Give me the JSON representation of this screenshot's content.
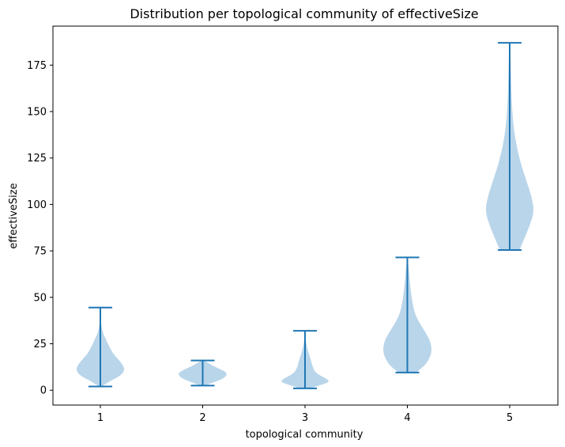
{
  "chart_data": {
    "type": "violin",
    "title": "Distribution per topological community of effectiveSize",
    "xlabel": "topological community",
    "ylabel": "effectiveSize",
    "ylim": [
      -8,
      196
    ],
    "y_ticks": [
      0,
      25,
      50,
      75,
      100,
      125,
      150,
      175
    ],
    "categories": [
      "1",
      "2",
      "3",
      "4",
      "5"
    ],
    "grid": false,
    "colors": {
      "body": "#b9d5ea",
      "line": "#1f77b4"
    },
    "violins": [
      {
        "category": "1",
        "min": 2,
        "max": 44.5,
        "profile": [
          [
            2,
            0.05
          ],
          [
            5,
            0.4
          ],
          [
            8,
            0.85
          ],
          [
            11,
            1.0
          ],
          [
            14,
            0.9
          ],
          [
            17,
            0.7
          ],
          [
            20,
            0.5
          ],
          [
            24,
            0.35
          ],
          [
            28,
            0.2
          ],
          [
            32,
            0.07
          ],
          [
            36,
            0.03
          ],
          [
            44.5,
            0.01
          ]
        ]
      },
      {
        "category": "2",
        "min": 2.5,
        "max": 16,
        "profile": [
          [
            2.5,
            0.1
          ],
          [
            4,
            0.4
          ],
          [
            6,
            0.8
          ],
          [
            7.5,
            0.95
          ],
          [
            9,
            1.0
          ],
          [
            10.5,
            0.85
          ],
          [
            12,
            0.6
          ],
          [
            14,
            0.3
          ],
          [
            16,
            0.05
          ]
        ]
      },
      {
        "category": "3",
        "min": 1,
        "max": 32,
        "profile": [
          [
            1,
            0.2
          ],
          [
            3,
            0.7
          ],
          [
            4.5,
            1.0
          ],
          [
            6,
            0.9
          ],
          [
            8,
            0.6
          ],
          [
            10,
            0.4
          ],
          [
            13,
            0.3
          ],
          [
            16,
            0.25
          ],
          [
            19,
            0.17
          ],
          [
            23,
            0.08
          ],
          [
            27,
            0.03
          ],
          [
            32,
            0.01
          ]
        ]
      },
      {
        "category": "4",
        "min": 9.5,
        "max": 71.5,
        "profile": [
          [
            9.5,
            0.35
          ],
          [
            13,
            0.7
          ],
          [
            17,
            0.9
          ],
          [
            21,
            1.0
          ],
          [
            26,
            0.95
          ],
          [
            31,
            0.75
          ],
          [
            36,
            0.5
          ],
          [
            42,
            0.28
          ],
          [
            50,
            0.17
          ],
          [
            58,
            0.1
          ],
          [
            65,
            0.06
          ],
          [
            71.5,
            0.01
          ]
        ]
      },
      {
        "category": "5",
        "min": 75.5,
        "max": 187,
        "profile": [
          [
            75.5,
            0.4
          ],
          [
            80,
            0.55
          ],
          [
            88,
            0.8
          ],
          [
            96,
            1.0
          ],
          [
            104,
            0.9
          ],
          [
            112,
            0.7
          ],
          [
            120,
            0.5
          ],
          [
            128,
            0.34
          ],
          [
            136,
            0.22
          ],
          [
            144,
            0.14
          ],
          [
            152,
            0.1
          ],
          [
            160,
            0.07
          ],
          [
            170,
            0.05
          ],
          [
            178,
            0.04
          ],
          [
            187,
            0.01
          ]
        ]
      }
    ]
  }
}
